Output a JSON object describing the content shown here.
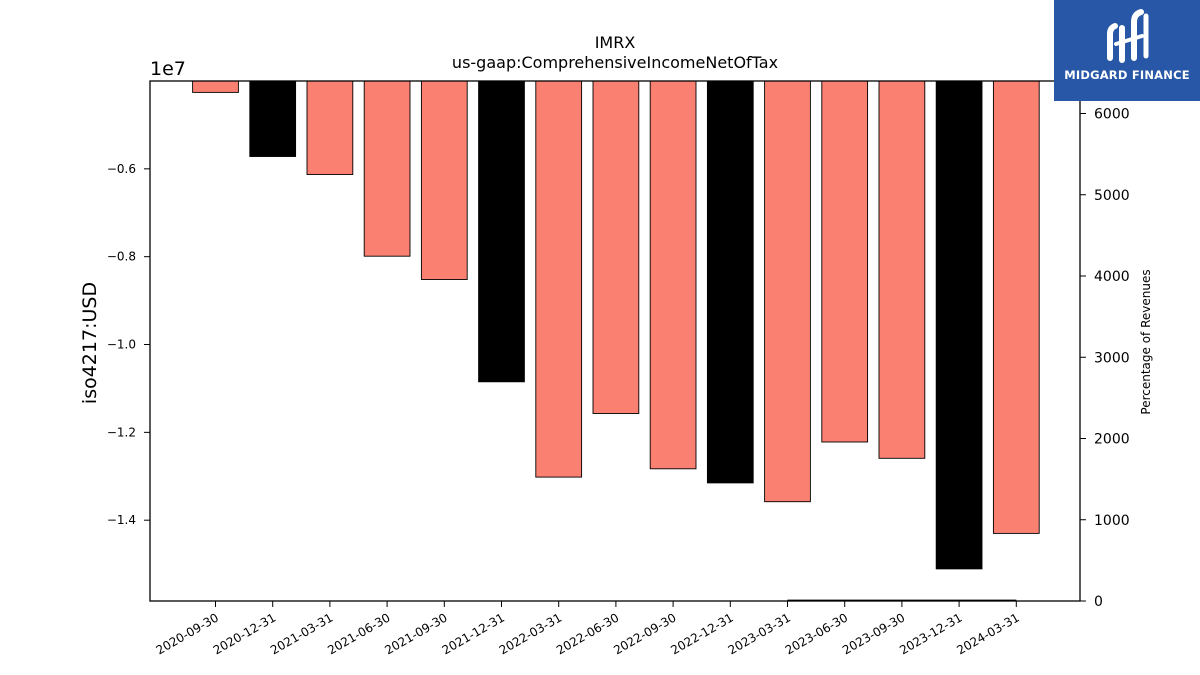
{
  "brand": {
    "name": "MIDGARD FINANCE",
    "logo_color": "#2757a6"
  },
  "chart_data": {
    "type": "bar",
    "title": "IMRX",
    "subtitle": "us-gaap:ComprehensiveIncomeNetOfTax",
    "ylabel": "iso4217:USD",
    "y2label": "Percentage of Revenues",
    "offset_label": "1e7",
    "y_scale": 10000000,
    "ylim": [
      -15840000,
      -4000000
    ],
    "yticks": [
      -1.4,
      -1.2,
      -1.0,
      -0.8,
      -0.6
    ],
    "y2lim": [
      0,
      6400
    ],
    "y2ticks": [
      0,
      1000,
      2000,
      3000,
      4000,
      5000,
      6000
    ],
    "categories": [
      "2020-09-30",
      "2020-12-31",
      "2021-03-31",
      "2021-06-30",
      "2021-09-30",
      "2021-12-31",
      "2022-03-31",
      "2022-06-30",
      "2022-09-30",
      "2022-12-31",
      "2023-03-31",
      "2023-06-30",
      "2023-09-30",
      "2023-12-31",
      "2024-03-31"
    ],
    "values": [
      -4260000,
      -5720000,
      -6130000,
      -7990000,
      -8520000,
      -10850000,
      -13020000,
      -11570000,
      -12830000,
      -13150000,
      -13580000,
      -12220000,
      -12590000,
      -15110000,
      -14300000
    ],
    "bar_colors": [
      "#fa8072",
      "#000000",
      "#fa8072",
      "#fa8072",
      "#fa8072",
      "#000000",
      "#fa8072",
      "#fa8072",
      "#fa8072",
      "#000000",
      "#fa8072",
      "#fa8072",
      "#fa8072",
      "#000000",
      "#fa8072"
    ],
    "secondary_series": {
      "type": "line",
      "x_range": [
        "2023-03-31",
        "2024-03-31"
      ],
      "values": [
        0,
        0,
        0,
        0,
        0
      ],
      "color": "#000000"
    },
    "grid": false
  }
}
